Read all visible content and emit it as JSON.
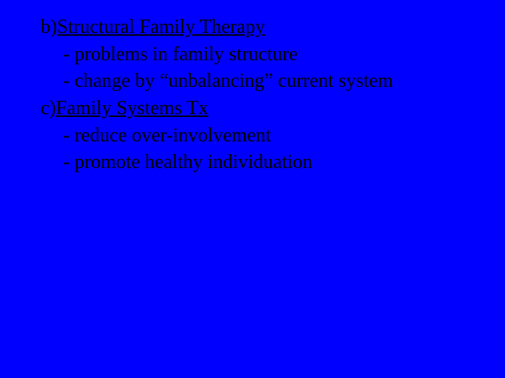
{
  "slide": {
    "background_color": "#0000ff",
    "text_color": "#000000",
    "font_family": "Times New Roman",
    "font_size_pt": 28,
    "sections": [
      {
        "prefix": "b)",
        "title": "Structural Family Therapy",
        "bullets": [
          "- problems in family structure",
          "- change by “unbalancing” current system"
        ]
      },
      {
        "prefix": "c)",
        "title": "Family Systems Tx",
        "bullets": [
          "- reduce over-involvement",
          "- promote healthy individuation"
        ]
      }
    ]
  },
  "flat": {
    "line1_prefix": "b)",
    "line1_title": "Structural Family Therapy",
    "line2": "- problems in family structure",
    "line3": "- change by “unbalancing” current system",
    "line4_prefix": "c)",
    "line4_title": "Family Systems Tx",
    "line5": "- reduce over-involvement",
    "line6": "- promote healthy individuation"
  }
}
